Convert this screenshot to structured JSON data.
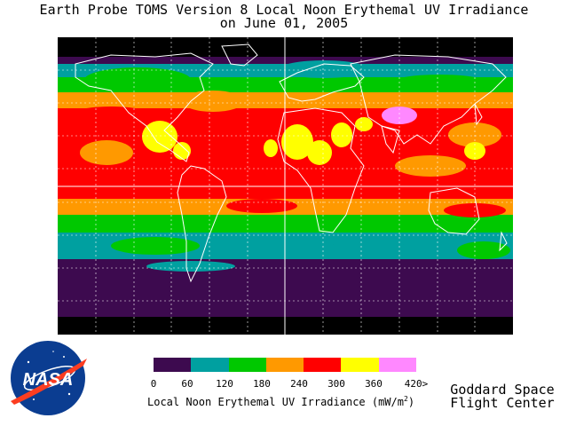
{
  "title": {
    "line1": "Earth Probe TOMS Version 8 Local Noon Erythemal UV Irradiance",
    "line2": "on June 01, 2005"
  },
  "colors": {
    "levels": [
      "#3d0a4f",
      "#00a0a0",
      "#00c800",
      "#ff9900",
      "#ff0000",
      "#ffff00",
      "#ff88ff"
    ],
    "polar_night": "#000000",
    "coast": "#ffffff"
  },
  "colorbar": {
    "ticks": [
      "0",
      "60",
      "120",
      "180",
      "240",
      "300",
      "360",
      "420>"
    ],
    "label": "Local Noon Erythemal UV Irradiance (mW/m",
    "label_sup": "2",
    "label_end": ")"
  },
  "credit": {
    "line1": "Goddard Space",
    "line2": "Flight Center"
  },
  "logo": {
    "text": "NASA",
    "icon": "nasa-meatball-logo-icon"
  }
}
